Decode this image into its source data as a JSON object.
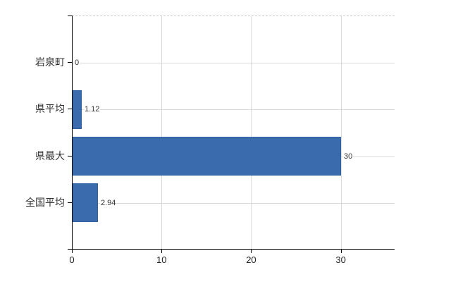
{
  "chart_data": {
    "type": "bar",
    "orientation": "horizontal",
    "title": "",
    "xlabel": "",
    "ylabel": "",
    "categories": [
      "岩泉町",
      "県平均",
      "県最大",
      "全国平均"
    ],
    "values": [
      0,
      1.12,
      30,
      2.94
    ],
    "value_labels": [
      "0",
      "1.12",
      "30",
      "2.94"
    ],
    "xticks": [
      0,
      10,
      20,
      30
    ],
    "xtick_labels": [
      "0",
      "10",
      "20",
      "30"
    ],
    "xlim": [
      0,
      36
    ],
    "grid": true,
    "legend": false,
    "colors": {
      "bar": "#3a6bad",
      "bar_border": "#31619f",
      "gridline": "#d9d9d9",
      "plot_top_border": "#c9c9c9",
      "axis": "#000000",
      "text": "#333333"
    }
  }
}
